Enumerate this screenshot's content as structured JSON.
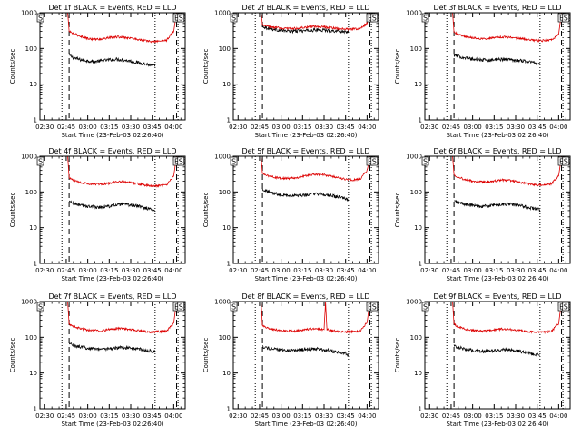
{
  "colors": {
    "events": "#000000",
    "lld": "#dd0000",
    "axes": "#000000",
    "background": "#ffffff"
  },
  "shared": {
    "xlabel": "Start Time (23-Feb-03 02:26:40)",
    "ylabel": "Counts/sec",
    "x_tick_labels": [
      "02:30",
      "02:45",
      "03:00",
      "03:15",
      "03:30",
      "03:45",
      "04:00"
    ],
    "y_tick_labels": [
      "1",
      "10",
      "100",
      "1000"
    ],
    "marker_labels": [
      "S",
      "E",
      "S"
    ]
  },
  "chart_data": [
    {
      "type": "line",
      "title": "Det 1f BLACK = Events, RED = LLD",
      "xlim": [
        "02:26:40",
        "04:08"
      ],
      "ylim": [
        1,
        1000
      ],
      "yscale": "log",
      "grid": false,
      "dotted_lines_x": [
        "02:42",
        "03:47",
        "04:03"
      ],
      "dashed_lines_x": [
        "02:47",
        "04:02"
      ],
      "segment_markers": [
        {
          "label": "S",
          "x": "02:27"
        },
        {
          "label": "E",
          "x": "04:02"
        },
        {
          "label": "S",
          "x": "04:05"
        }
      ],
      "series": [
        {
          "color": "black",
          "x": [
            "02:47",
            "02:50",
            "02:55",
            "03:00",
            "03:05",
            "03:10",
            "03:15",
            "03:20",
            "03:25",
            "03:30",
            "03:35",
            "03:40",
            "03:45",
            "03:47"
          ],
          "values": [
            65,
            55,
            48,
            45,
            43,
            45,
            48,
            50,
            47,
            44,
            40,
            37,
            33,
            31
          ]
        },
        {
          "color": "red",
          "x": [
            "02:46",
            "02:47",
            "02:50",
            "02:55",
            "03:00",
            "03:05",
            "03:10",
            "03:15",
            "03:20",
            "03:25",
            "03:30",
            "03:35",
            "03:40",
            "03:45",
            "03:50",
            "03:55",
            "04:00",
            "04:02"
          ],
          "values": [
            1000,
            300,
            260,
            220,
            190,
            180,
            185,
            200,
            210,
            205,
            195,
            180,
            165,
            155,
            160,
            170,
            300,
            1000
          ]
        }
      ]
    },
    {
      "type": "line",
      "title": "Det 2f BLACK = Events, RED = LLD",
      "xlim": [
        "02:26:40",
        "04:08"
      ],
      "ylim": [
        1,
        1000
      ],
      "yscale": "log",
      "grid": false,
      "dotted_lines_x": [
        "02:42",
        "03:47",
        "04:03"
      ],
      "dashed_lines_x": [
        "02:47",
        "04:02"
      ],
      "segment_markers": [
        {
          "label": "S",
          "x": "02:27"
        },
        {
          "label": "E",
          "x": "04:02"
        },
        {
          "label": "S",
          "x": "04:05"
        }
      ],
      "series": [
        {
          "color": "black",
          "x": [
            "02:47",
            "02:50",
            "02:55",
            "03:00",
            "03:05",
            "03:10",
            "03:15",
            "03:20",
            "03:25",
            "03:30",
            "03:35",
            "03:40",
            "03:45",
            "03:47"
          ],
          "values": [
            420,
            380,
            340,
            320,
            310,
            305,
            310,
            320,
            330,
            325,
            315,
            305,
            295,
            290
          ]
        },
        {
          "color": "red",
          "x": [
            "02:46",
            "02:47",
            "02:50",
            "02:55",
            "03:00",
            "03:05",
            "03:10",
            "03:15",
            "03:20",
            "03:25",
            "03:30",
            "03:35",
            "03:40",
            "03:45",
            "03:50",
            "03:55",
            "04:00",
            "04:02"
          ],
          "values": [
            1000,
            450,
            420,
            390,
            370,
            360,
            365,
            380,
            400,
            410,
            400,
            380,
            360,
            345,
            350,
            360,
            500,
            1000
          ]
        }
      ]
    },
    {
      "type": "line",
      "title": "Det 3f BLACK = Events, RED = LLD",
      "xlim": [
        "02:26:40",
        "04:08"
      ],
      "ylim": [
        1,
        1000
      ],
      "yscale": "log",
      "grid": false,
      "dotted_lines_x": [
        "02:42",
        "03:47",
        "04:03"
      ],
      "dashed_lines_x": [
        "02:47",
        "04:02"
      ],
      "segment_markers": [
        {
          "label": "S",
          "x": "02:27"
        },
        {
          "label": "E",
          "x": "04:02"
        },
        {
          "label": "S",
          "x": "04:05"
        }
      ],
      "series": [
        {
          "color": "black",
          "x": [
            "02:47",
            "02:50",
            "02:55",
            "03:00",
            "03:05",
            "03:10",
            "03:15",
            "03:20",
            "03:25",
            "03:30",
            "03:35",
            "03:40",
            "03:45",
            "03:47"
          ],
          "values": [
            65,
            60,
            55,
            50,
            48,
            47,
            48,
            50,
            49,
            47,
            45,
            42,
            39,
            37
          ]
        },
        {
          "color": "red",
          "x": [
            "02:46",
            "02:47",
            "02:50",
            "02:55",
            "03:00",
            "03:05",
            "03:10",
            "03:15",
            "03:20",
            "03:25",
            "03:30",
            "03:35",
            "03:40",
            "03:45",
            "03:50",
            "03:55",
            "04:00",
            "04:02"
          ],
          "values": [
            1000,
            280,
            250,
            215,
            200,
            190,
            190,
            200,
            210,
            205,
            195,
            185,
            175,
            165,
            165,
            170,
            250,
            1000
          ]
        }
      ]
    },
    {
      "type": "line",
      "title": "Det 4f BLACK = Events, RED = LLD",
      "xlim": [
        "02:26:40",
        "04:08"
      ],
      "ylim": [
        1,
        1000
      ],
      "yscale": "log",
      "grid": false,
      "dotted_lines_x": [
        "02:42",
        "03:47",
        "04:03"
      ],
      "dashed_lines_x": [
        "02:47",
        "04:02"
      ],
      "segment_markers": [
        {
          "label": "S",
          "x": "02:27"
        },
        {
          "label": "E",
          "x": "04:02"
        },
        {
          "label": "S",
          "x": "04:05"
        }
      ],
      "series": [
        {
          "color": "black",
          "x": [
            "02:47",
            "02:50",
            "02:55",
            "03:00",
            "03:05",
            "03:10",
            "03:15",
            "03:20",
            "03:25",
            "03:30",
            "03:35",
            "03:40",
            "03:45",
            "03:47"
          ],
          "values": [
            55,
            48,
            42,
            40,
            38,
            38,
            40,
            43,
            45,
            43,
            40,
            36,
            32,
            30
          ]
        },
        {
          "color": "red",
          "x": [
            "02:46",
            "02:47",
            "02:50",
            "02:55",
            "03:00",
            "03:05",
            "03:10",
            "03:15",
            "03:20",
            "03:25",
            "03:30",
            "03:35",
            "03:40",
            "03:45",
            "03:50",
            "03:55",
            "04:00",
            "04:02"
          ],
          "values": [
            1000,
            250,
            210,
            185,
            170,
            165,
            165,
            175,
            190,
            195,
            185,
            170,
            155,
            145,
            150,
            160,
            280,
            1000
          ]
        }
      ]
    },
    {
      "type": "line",
      "title": "Det 5f BLACK = Events, RED = LLD",
      "xlim": [
        "02:26:40",
        "04:08"
      ],
      "ylim": [
        1,
        1000
      ],
      "yscale": "log",
      "grid": false,
      "dotted_lines_x": [
        "02:42",
        "03:47",
        "04:03"
      ],
      "dashed_lines_x": [
        "02:47",
        "04:02"
      ],
      "segment_markers": [
        {
          "label": "S",
          "x": "02:27"
        },
        {
          "label": "E",
          "x": "04:02"
        },
        {
          "label": "S",
          "x": "04:05"
        }
      ],
      "series": [
        {
          "color": "black",
          "x": [
            "02:47",
            "02:50",
            "02:55",
            "03:00",
            "03:05",
            "03:10",
            "03:15",
            "03:20",
            "03:25",
            "03:30",
            "03:35",
            "03:40",
            "03:45",
            "03:47"
          ],
          "values": [
            120,
            105,
            92,
            85,
            80,
            78,
            80,
            85,
            88,
            85,
            78,
            72,
            64,
            60
          ]
        },
        {
          "color": "red",
          "x": [
            "02:46",
            "02:47",
            "02:50",
            "02:55",
            "03:00",
            "03:05",
            "03:10",
            "03:15",
            "03:20",
            "03:25",
            "03:30",
            "03:35",
            "03:40",
            "03:45",
            "03:50",
            "03:55",
            "04:00",
            "04:02"
          ],
          "values": [
            1000,
            320,
            290,
            260,
            245,
            240,
            250,
            270,
            300,
            310,
            300,
            275,
            250,
            225,
            215,
            225,
            400,
            1000
          ]
        }
      ]
    },
    {
      "type": "line",
      "title": "Det 6f BLACK = Events, RED = LLD",
      "xlim": [
        "02:26:40",
        "04:08"
      ],
      "ylim": [
        1,
        1000
      ],
      "yscale": "log",
      "grid": false,
      "dotted_lines_x": [
        "02:42",
        "03:47",
        "04:03"
      ],
      "dashed_lines_x": [
        "02:47",
        "04:02"
      ],
      "segment_markers": [
        {
          "label": "S",
          "x": "02:27"
        },
        {
          "label": "E",
          "x": "04:02"
        },
        {
          "label": "S",
          "x": "04:05"
        }
      ],
      "series": [
        {
          "color": "black",
          "x": [
            "02:47",
            "02:50",
            "02:55",
            "03:00",
            "03:05",
            "03:10",
            "03:15",
            "03:20",
            "03:25",
            "03:30",
            "03:35",
            "03:40",
            "03:45",
            "03:47"
          ],
          "values": [
            55,
            50,
            45,
            42,
            40,
            40,
            42,
            45,
            46,
            43,
            40,
            36,
            33,
            31
          ]
        },
        {
          "color": "red",
          "x": [
            "02:46",
            "02:47",
            "02:50",
            "02:55",
            "03:00",
            "03:05",
            "03:10",
            "03:15",
            "03:20",
            "03:25",
            "03:30",
            "03:35",
            "03:40",
            "03:45",
            "03:50",
            "03:55",
            "04:00",
            "04:02"
          ],
          "values": [
            1000,
            300,
            260,
            220,
            200,
            190,
            190,
            200,
            215,
            210,
            195,
            180,
            165,
            155,
            160,
            170,
            280,
            1000
          ]
        }
      ]
    },
    {
      "type": "line",
      "title": "Det 7f BLACK = Events, RED = LLD",
      "xlim": [
        "02:26:40",
        "04:08"
      ],
      "ylim": [
        1,
        1000
      ],
      "yscale": "log",
      "grid": false,
      "dotted_lines_x": [
        "02:42",
        "03:47",
        "04:03"
      ],
      "dashed_lines_x": [
        "02:47",
        "04:02"
      ],
      "segment_markers": [
        {
          "label": "S",
          "x": "02:27"
        },
        {
          "label": "E",
          "x": "04:02"
        },
        {
          "label": "S",
          "x": "04:05"
        }
      ],
      "series": [
        {
          "color": "black",
          "x": [
            "02:47",
            "02:50",
            "02:55",
            "03:00",
            "03:05",
            "03:10",
            "03:15",
            "03:20",
            "03:25",
            "03:30",
            "03:35",
            "03:40",
            "03:45",
            "03:47"
          ],
          "values": [
            70,
            60,
            53,
            50,
            48,
            47,
            48,
            50,
            52,
            50,
            47,
            44,
            41,
            40
          ]
        },
        {
          "color": "red",
          "x": [
            "02:46",
            "02:47",
            "02:50",
            "02:55",
            "03:00",
            "03:05",
            "03:10",
            "03:15",
            "03:20",
            "03:25",
            "03:30",
            "03:35",
            "03:40",
            "03:45",
            "03:50",
            "03:55",
            "04:00",
            "04:02"
          ],
          "values": [
            1000,
            230,
            200,
            175,
            160,
            155,
            155,
            165,
            175,
            175,
            165,
            155,
            145,
            140,
            145,
            150,
            250,
            1000
          ]
        }
      ]
    },
    {
      "type": "line",
      "title": "Det 8f BLACK = Events, RED = LLD",
      "xlim": [
        "02:26:40",
        "04:08"
      ],
      "ylim": [
        1,
        1000
      ],
      "yscale": "log",
      "grid": false,
      "dotted_lines_x": [
        "02:42",
        "03:47",
        "04:03"
      ],
      "dashed_lines_x": [
        "02:47",
        "04:02"
      ],
      "segment_markers": [
        {
          "label": "S",
          "x": "02:27"
        },
        {
          "label": "E",
          "x": "04:02"
        },
        {
          "label": "S",
          "x": "04:05"
        }
      ],
      "series": [
        {
          "color": "black",
          "x": [
            "02:47",
            "02:50",
            "02:55",
            "03:00",
            "03:05",
            "03:10",
            "03:15",
            "03:20",
            "03:25",
            "03:30",
            "03:35",
            "03:40",
            "03:45",
            "03:47"
          ],
          "values": [
            55,
            50,
            46,
            44,
            43,
            43,
            45,
            47,
            48,
            45,
            42,
            38,
            36,
            30
          ]
        },
        {
          "color": "red",
          "x": [
            "02:46",
            "02:47",
            "02:50",
            "02:55",
            "03:00",
            "03:05",
            "03:10",
            "03:15",
            "03:20",
            "03:25",
            "03:30",
            "03:31",
            "03:32",
            "03:35",
            "03:40",
            "03:45",
            "03:50",
            "03:55",
            "04:00",
            "04:02"
          ],
          "values": [
            1000,
            210,
            185,
            165,
            155,
            150,
            150,
            160,
            170,
            170,
            165,
            1000,
            165,
            155,
            145,
            140,
            145,
            150,
            260,
            1000
          ]
        }
      ]
    },
    {
      "type": "line",
      "title": "Det 9f BLACK = Events, RED = LLD",
      "xlim": [
        "02:26:40",
        "04:08"
      ],
      "ylim": [
        1,
        1000
      ],
      "yscale": "log",
      "grid": false,
      "dotted_lines_x": [
        "02:42",
        "03:47",
        "04:03"
      ],
      "dashed_lines_x": [
        "02:47",
        "04:02"
      ],
      "segment_markers": [
        {
          "label": "S",
          "x": "02:27"
        },
        {
          "label": "E",
          "x": "04:02"
        },
        {
          "label": "S",
          "x": "04:05"
        }
      ],
      "series": [
        {
          "color": "black",
          "x": [
            "02:47",
            "02:50",
            "02:55",
            "03:00",
            "03:05",
            "03:10",
            "03:15",
            "03:20",
            "03:25",
            "03:30",
            "03:35",
            "03:40",
            "03:45",
            "03:47"
          ],
          "values": [
            60,
            52,
            46,
            43,
            41,
            40,
            42,
            44,
            45,
            42,
            39,
            36,
            33,
            31
          ]
        },
        {
          "color": "red",
          "x": [
            "02:46",
            "02:47",
            "02:50",
            "02:55",
            "03:00",
            "03:05",
            "03:10",
            "03:15",
            "03:20",
            "03:25",
            "03:30",
            "03:35",
            "03:40",
            "03:45",
            "03:50",
            "03:55",
            "04:00",
            "04:02"
          ],
          "values": [
            1000,
            230,
            195,
            170,
            155,
            150,
            150,
            160,
            170,
            168,
            160,
            150,
            142,
            138,
            140,
            148,
            240,
            1000
          ]
        }
      ]
    }
  ]
}
